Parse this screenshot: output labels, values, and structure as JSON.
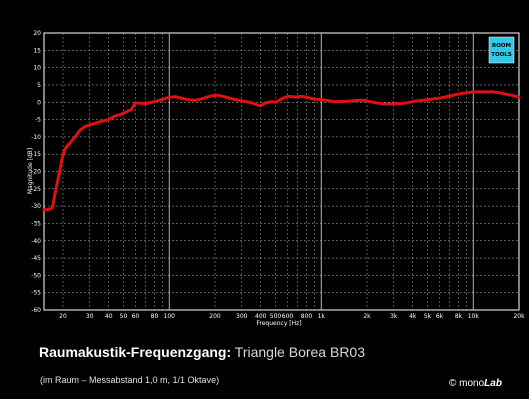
{
  "chart_data": {
    "type": "line",
    "title": "",
    "xlabel": "Frequency [Hz]",
    "ylabel": "Magnitude [dB]",
    "xscale": "log",
    "xlim": [
      15,
      20000
    ],
    "ylim": [
      -60,
      20
    ],
    "grid": true,
    "x_tick_labels": [
      {
        "value": 20,
        "label": "20"
      },
      {
        "value": 30,
        "label": "30"
      },
      {
        "value": 40,
        "label": "40"
      },
      {
        "value": 50,
        "label": "50"
      },
      {
        "value": 60,
        "label": "60"
      },
      {
        "value": 80,
        "label": "80"
      },
      {
        "value": 100,
        "label": "100"
      },
      {
        "value": 200,
        "label": "200"
      },
      {
        "value": 300,
        "label": "300"
      },
      {
        "value": 400,
        "label": "400"
      },
      {
        "value": 500,
        "label": "500"
      },
      {
        "value": 600,
        "label": "600"
      },
      {
        "value": 800,
        "label": "800"
      },
      {
        "value": 1000,
        "label": "1k"
      },
      {
        "value": 2000,
        "label": "2k"
      },
      {
        "value": 3000,
        "label": "3k"
      },
      {
        "value": 4000,
        "label": "4k"
      },
      {
        "value": 5000,
        "label": "5k"
      },
      {
        "value": 6000,
        "label": "6k"
      },
      {
        "value": 8000,
        "label": "8k"
      },
      {
        "value": 10000,
        "label": "10k"
      },
      {
        "value": 20000,
        "label": "20k"
      }
    ],
    "y_ticks": [
      20,
      15,
      10,
      5,
      0,
      -5,
      -10,
      -15,
      -20,
      -25,
      -30,
      -35,
      -40,
      -45,
      -50,
      -55,
      -60
    ],
    "series": [
      {
        "color": "#e01010",
        "x": [
          15,
          16,
          17,
          18,
          19,
          20,
          21,
          22,
          24,
          26,
          28,
          30,
          33,
          36,
          40,
          44,
          48,
          52,
          56,
          60,
          65,
          70,
          75,
          80,
          90,
          100,
          110,
          120,
          135,
          150,
          170,
          190,
          210,
          230,
          260,
          290,
          320,
          350,
          380,
          400,
          430,
          470,
          500,
          540,
          580,
          620,
          680,
          740,
          800,
          880,
          950,
          1000,
          1100,
          1200,
          1350,
          1500,
          1700,
          1900,
          2100,
          2300,
          2600,
          2900,
          3200,
          3500,
          3800,
          4100,
          4500,
          5000,
          5500,
          6000,
          6500,
          7000,
          7700,
          8500,
          9300,
          10000,
          11000,
          12000,
          13500,
          15000,
          16500,
          18000,
          20000
        ],
        "y": [
          -31,
          -31,
          -30.5,
          -25,
          -20,
          -15,
          -13,
          -12,
          -10,
          -8,
          -7,
          -6.5,
          -6,
          -5.5,
          -5,
          -4,
          -3.5,
          -2.8,
          -2.2,
          -0.2,
          -0.3,
          -0.4,
          -0.1,
          0.2,
          0.8,
          1.5,
          1.6,
          1.2,
          0.7,
          0.6,
          1.2,
          1.9,
          2.0,
          1.6,
          1.0,
          0.5,
          0.2,
          -0.2,
          -0.8,
          -1.0,
          -0.2,
          0.2,
          0.0,
          0.8,
          1.5,
          1.7,
          1.5,
          1.7,
          1.5,
          1.0,
          0.8,
          0.8,
          0.5,
          0.2,
          0.2,
          0.3,
          0.5,
          0.6,
          0.2,
          -0.2,
          -0.5,
          -0.5,
          -0.4,
          -0.3,
          0.0,
          0.3,
          0.5,
          0.7,
          1.0,
          1.2,
          1.5,
          1.8,
          2.2,
          2.6,
          2.8,
          3.0,
          3.0,
          3.0,
          3.0,
          2.7,
          2.3,
          2.0,
          1.5
        ]
      }
    ]
  },
  "logo": {
    "line1": "ROOM",
    "line2": "TOOLS"
  },
  "caption": {
    "bold": "Raumakustik-Frequenzgang:",
    "light": "Triangle Borea BR03",
    "sub": "(im Raum – Messabstand 1,0 m, 1/1 Oktave)"
  },
  "copyright": {
    "symbol": "©",
    "prefix": "mono",
    "suffix": "Lab"
  }
}
